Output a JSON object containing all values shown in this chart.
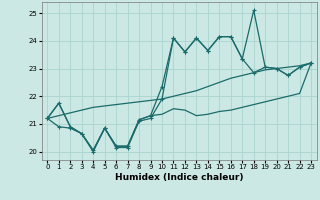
{
  "xlabel": "Humidex (Indice chaleur)",
  "xlim": [
    -0.5,
    23.5
  ],
  "ylim": [
    19.7,
    25.4
  ],
  "bg_color": "#cce8e4",
  "grid_color": "#aad4cf",
  "line_color": "#1a6b6b",
  "xticks": [
    0,
    1,
    2,
    3,
    4,
    5,
    6,
    7,
    8,
    9,
    10,
    11,
    12,
    13,
    14,
    15,
    16,
    17,
    18,
    19,
    20,
    21,
    22,
    23
  ],
  "yticks": [
    20,
    21,
    22,
    23,
    24,
    25
  ],
  "series1_x": [
    0,
    1,
    2,
    3,
    4,
    5,
    6,
    7,
    8,
    9,
    10,
    11,
    12,
    13,
    14,
    15,
    16,
    17,
    18,
    19,
    20,
    21,
    22,
    23
  ],
  "series1_y": [
    21.2,
    21.75,
    20.9,
    20.65,
    20.05,
    20.85,
    20.2,
    20.2,
    21.15,
    21.3,
    21.35,
    21.55,
    21.5,
    21.3,
    21.35,
    21.45,
    21.5,
    21.6,
    21.7,
    21.8,
    21.9,
    22.0,
    22.1,
    23.2
  ],
  "series2_x": [
    0,
    1,
    2,
    3,
    4,
    5,
    6,
    7,
    8,
    9,
    10,
    11,
    12,
    13,
    14,
    15,
    16,
    17,
    18,
    19,
    20,
    21,
    22,
    23
  ],
  "series2_y": [
    21.2,
    21.3,
    21.4,
    21.5,
    21.6,
    21.65,
    21.7,
    21.75,
    21.8,
    21.85,
    21.9,
    22.0,
    22.1,
    22.2,
    22.35,
    22.5,
    22.65,
    22.75,
    22.85,
    22.95,
    23.0,
    23.05,
    23.1,
    23.2
  ],
  "series3_x": [
    0,
    1,
    2,
    3,
    4,
    5,
    6,
    7,
    8,
    9,
    10,
    11,
    12,
    13,
    14,
    15,
    16,
    17,
    18,
    19,
    20,
    21,
    22,
    23
  ],
  "series3_y": [
    21.2,
    20.9,
    20.85,
    20.65,
    20.0,
    20.85,
    20.15,
    20.15,
    21.1,
    21.2,
    21.9,
    24.1,
    23.6,
    24.1,
    23.65,
    24.15,
    24.15,
    23.35,
    22.85,
    23.05,
    23.0,
    22.75,
    23.05,
    23.2
  ],
  "series4_x": [
    0,
    1,
    2,
    3,
    4,
    5,
    6,
    7,
    8,
    9,
    10,
    11,
    12,
    13,
    14,
    15,
    16,
    17,
    18,
    19,
    20,
    21,
    22,
    23
  ],
  "series4_y": [
    21.2,
    21.75,
    20.9,
    20.65,
    20.05,
    20.85,
    20.2,
    20.2,
    21.15,
    21.3,
    22.35,
    24.1,
    23.6,
    24.1,
    23.65,
    24.15,
    24.15,
    23.35,
    25.1,
    23.05,
    23.0,
    22.75,
    23.05,
    23.2
  ]
}
